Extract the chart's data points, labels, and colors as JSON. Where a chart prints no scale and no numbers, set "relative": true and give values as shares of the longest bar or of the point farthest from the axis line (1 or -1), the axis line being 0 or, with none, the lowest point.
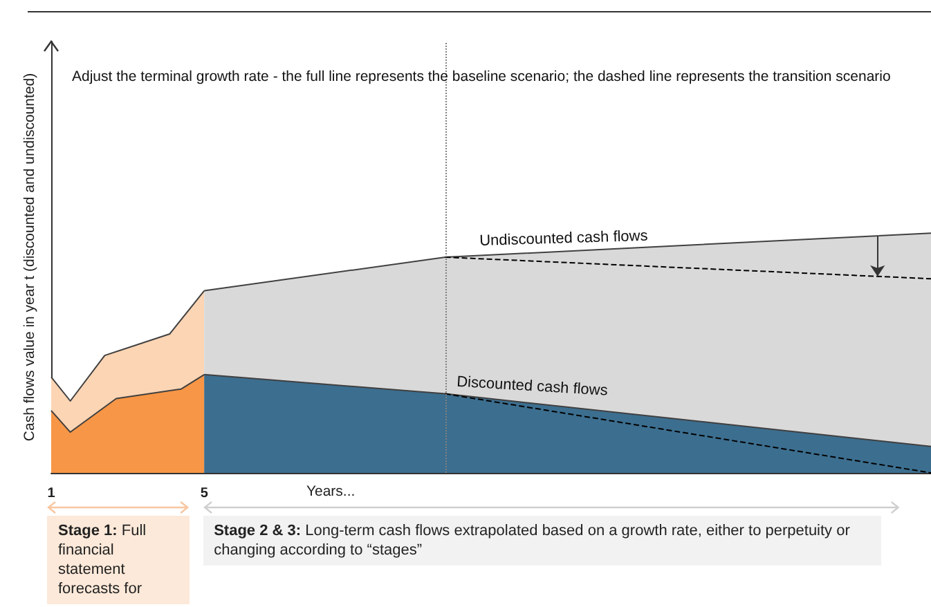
{
  "chart_data": {
    "type": "area",
    "relative": true,
    "title": "Adjust the terminal growth rate - the full line represents the baseline scenario; the dashed line represents the transition scenario",
    "xlabel": "Years...",
    "ylabel": "Cash flows value in year t (discounted and undiscounted)",
    "xlim": [
      1,
      24
    ],
    "xticks": [
      1,
      5
    ],
    "series": [
      {
        "color": "#fcd5b4",
        "x": [
          1,
          1.5,
          2.4,
          4.1,
          5
        ],
        "values": [
          0.4,
          0.3,
          0.49,
          0.58,
          0.76
        ]
      },
      {
        "color": "#d9d9d9",
        "x": [
          5,
          11.3,
          24
        ],
        "values": [
          0.76,
          0.9,
          1
        ]
      },
      {
        "color": "#f79646",
        "x": [
          1,
          1.5,
          2.7,
          4.4,
          5
        ],
        "values": [
          0.26,
          0.17,
          0.31,
          0.35,
          0.41
        ]
      },
      {
        "color": "#3c6e8f",
        "x": [
          5,
          11.3,
          24
        ],
        "values": [
          0.41,
          0.33,
          0.11
        ]
      },
      {
        "type": "line",
        "line_style": "dashed",
        "color": "#000000",
        "x": [
          11.3,
          24
        ],
        "values": [
          0.9,
          0.81
        ]
      },
      {
        "type": "line",
        "line_style": "dashed",
        "color": "#000000",
        "x": [
          11.3,
          24
        ],
        "values": [
          0.33,
          0
        ]
      }
    ],
    "ref_lines": [
      {
        "axis": "x",
        "value": 11.3,
        "line_style": "dotted",
        "color": "#808080"
      }
    ],
    "annotations": [
      {
        "text": "Undiscounted cash flows",
        "x": 11.3,
        "y": 0.9
      },
      {
        "text": "Discounted cash flows",
        "x": 11.3,
        "y": 0.33
      },
      "Stage 1: Full financial statement forecasts for",
      "Stage 2 & 3: Long-term cash flows extrapolated based on a growth rate, either to perpetuity or changing according to “stages”"
    ]
  }
}
